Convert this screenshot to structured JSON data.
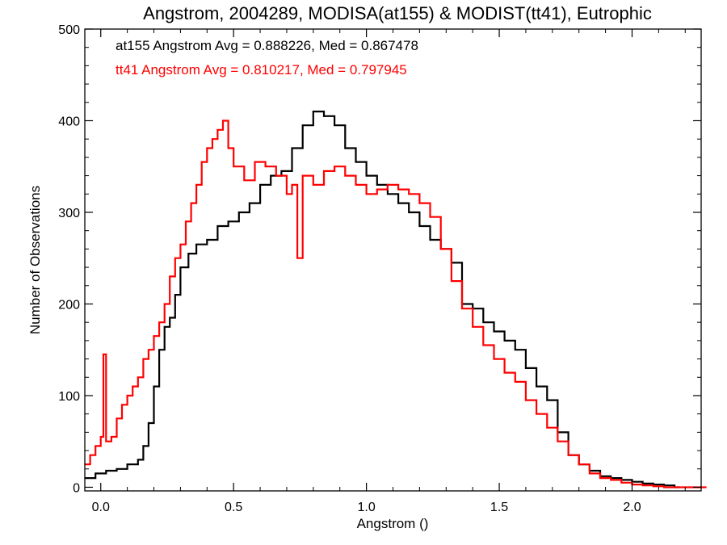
{
  "chart_data": {
    "type": "line",
    "style": "step-histogram",
    "title": "Angstrom, 2004289, MODISA(at155) & MODIST(tt41), Eutrophic",
    "xlabel": "Angstrom ()",
    "ylabel": "Number of Observations",
    "xlim": [
      -0.06,
      2.26
    ],
    "ylim": [
      -4,
      500
    ],
    "x_ticks": [
      0.0,
      0.5,
      1.0,
      1.5,
      2.0
    ],
    "x_tick_labels": [
      "0.0",
      "0.5",
      "1.0",
      "1.5",
      "2.0"
    ],
    "y_ticks": [
      0,
      100,
      200,
      300,
      400,
      500
    ],
    "y_tick_labels": [
      "0",
      "100",
      "200",
      "300",
      "400",
      "500"
    ],
    "grid": false,
    "annotations": [
      {
        "text": "at155 Angstrom Avg = 0.888226, Med = 0.867478",
        "color": "#000000"
      },
      {
        "text": "tt41 Angstrom Avg = 0.810217, Med = 0.797945",
        "color": "#ff0000"
      }
    ],
    "series": [
      {
        "name": "at155",
        "color": "#000000",
        "x": [
          -0.06,
          -0.02,
          0.02,
          0.06,
          0.1,
          0.14,
          0.16,
          0.18,
          0.2,
          0.22,
          0.24,
          0.26,
          0.28,
          0.3,
          0.33,
          0.36,
          0.4,
          0.44,
          0.48,
          0.52,
          0.56,
          0.6,
          0.64,
          0.68,
          0.72,
          0.76,
          0.8,
          0.84,
          0.88,
          0.92,
          0.96,
          1.0,
          1.04,
          1.08,
          1.12,
          1.16,
          1.2,
          1.24,
          1.28,
          1.32,
          1.36,
          1.4,
          1.44,
          1.48,
          1.52,
          1.56,
          1.6,
          1.64,
          1.68,
          1.72,
          1.76,
          1.8,
          1.84,
          1.88,
          1.92,
          1.96,
          2.0,
          2.04,
          2.08,
          2.12,
          2.16
        ],
        "values": [
          10,
          15,
          18,
          20,
          25,
          30,
          45,
          70,
          110,
          150,
          175,
          185,
          210,
          240,
          255,
          265,
          270,
          285,
          290,
          300,
          310,
          330,
          340,
          345,
          370,
          395,
          410,
          405,
          395,
          370,
          355,
          340,
          330,
          320,
          310,
          300,
          285,
          270,
          260,
          245,
          200,
          195,
          180,
          170,
          160,
          150,
          130,
          110,
          95,
          60,
          35,
          25,
          18,
          12,
          10,
          8,
          6,
          4,
          3,
          2,
          0
        ]
      },
      {
        "name": "tt41",
        "color": "#ff0000",
        "x": [
          -0.06,
          -0.04,
          -0.02,
          0.0,
          0.01,
          0.02,
          0.04,
          0.06,
          0.08,
          0.1,
          0.12,
          0.14,
          0.16,
          0.18,
          0.2,
          0.22,
          0.24,
          0.26,
          0.28,
          0.3,
          0.32,
          0.34,
          0.36,
          0.38,
          0.4,
          0.42,
          0.44,
          0.46,
          0.48,
          0.5,
          0.54,
          0.58,
          0.62,
          0.66,
          0.7,
          0.72,
          0.74,
          0.76,
          0.8,
          0.84,
          0.88,
          0.92,
          0.96,
          1.0,
          1.04,
          1.08,
          1.12,
          1.16,
          1.2,
          1.24,
          1.28,
          1.32,
          1.36,
          1.4,
          1.44,
          1.48,
          1.52,
          1.56,
          1.6,
          1.64,
          1.68,
          1.72,
          1.76,
          1.8,
          1.84,
          1.88,
          1.92,
          1.96,
          2.0,
          2.04,
          2.08,
          2.12,
          2.16,
          2.26
        ],
        "values": [
          25,
          35,
          45,
          55,
          145,
          50,
          55,
          75,
          90,
          100,
          110,
          120,
          140,
          150,
          165,
          180,
          200,
          230,
          250,
          265,
          290,
          310,
          330,
          355,
          370,
          380,
          390,
          400,
          370,
          350,
          335,
          355,
          350,
          340,
          320,
          330,
          250,
          340,
          330,
          345,
          350,
          340,
          330,
          320,
          325,
          330,
          325,
          320,
          310,
          295,
          260,
          225,
          195,
          175,
          155,
          140,
          125,
          115,
          95,
          80,
          65,
          50,
          35,
          25,
          15,
          10,
          8,
          5,
          3,
          2,
          1,
          0,
          0,
          0
        ]
      }
    ]
  }
}
